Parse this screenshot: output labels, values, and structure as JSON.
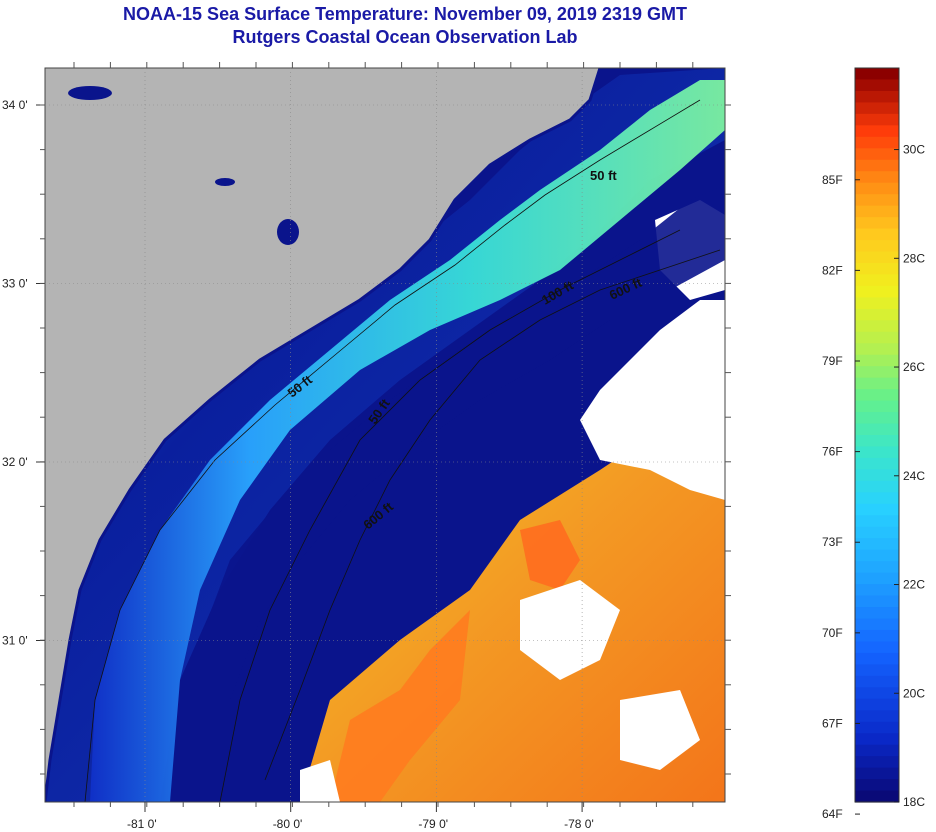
{
  "header": {
    "title": "NOAA-15 Sea Surface Temperature:  November 09, 2019 2319 GMT",
    "subtitle": "Rutgers Coastal Ocean Observation Lab"
  },
  "map": {
    "lat_ticks": [
      {
        "value": 34,
        "label": "34 0'"
      },
      {
        "value": 33,
        "label": "33 0'"
      },
      {
        "value": 32,
        "label": "32 0'"
      },
      {
        "value": 31,
        "label": "31 0'"
      }
    ],
    "lon_ticks": [
      {
        "value": -81,
        "label": "-81 0'"
      },
      {
        "value": -80,
        "label": "-80 0'"
      },
      {
        "value": -79,
        "label": "-79 0'"
      },
      {
        "value": -78,
        "label": "-78 0'"
      }
    ],
    "contour_labels": [
      "50 ft",
      "50 ft",
      "50 ft",
      "100 ft",
      "600 ft",
      "600 ft"
    ],
    "colors": {
      "land": "#b4b4b4",
      "missing": "#ffffff",
      "cold": "#0a148c",
      "warm": "#ff8c14"
    }
  },
  "colorbar": {
    "fahrenheit_labels": [
      "85F",
      "82F",
      "79F",
      "76F",
      "73F",
      "70F",
      "67F",
      "64F"
    ],
    "celsius_labels": [
      "30C",
      "28C",
      "26C",
      "24C",
      "22C",
      "20C",
      "18C"
    ],
    "min_c": 18,
    "max_c": 31.5
  }
}
